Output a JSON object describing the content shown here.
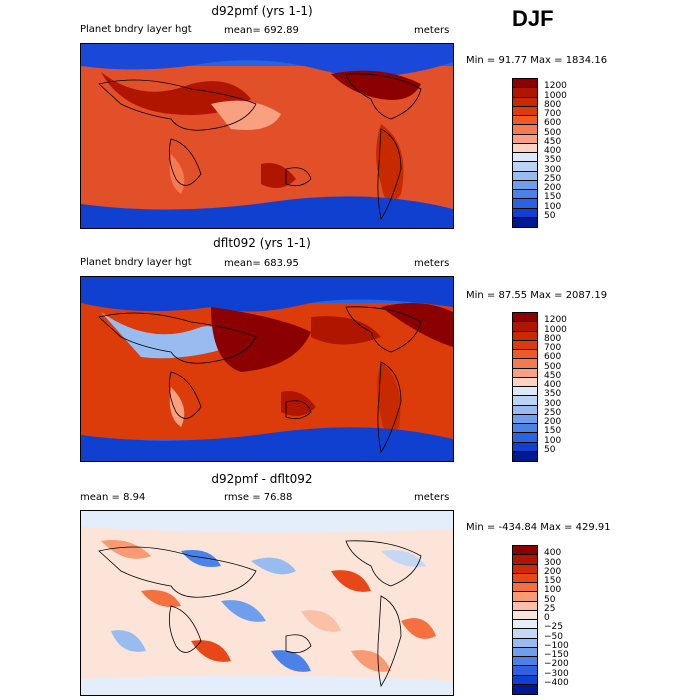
{
  "season": "DJF",
  "panels": [
    {
      "title": "d92pmf (yrs 1-1)",
      "left_label": "Planet bndry layer hgt",
      "mid_label": "mean= 692.89",
      "right_label": "meters",
      "minmax": "Min =  91.77 Max = 1834.16",
      "colorbar": {
        "labels": [
          "1200",
          "1000",
          "800",
          "700",
          "600",
          "500",
          "450",
          "400",
          "350",
          "300",
          "250",
          "200",
          "150",
          "100",
          "50"
        ],
        "colors": [
          "#8b0000",
          "#b01500",
          "#c82a00",
          "#dc3b0a",
          "#ec5a2a",
          "#f47a52",
          "#f8a080",
          "#fbd3c0",
          "#dde8f8",
          "#bcd4f4",
          "#98bcf0",
          "#6f9eec",
          "#4a82e8",
          "#2a62e0",
          "#1040d0",
          "#001890"
        ]
      }
    },
    {
      "title": "dflt092 (yrs 1-1)",
      "left_label": "Planet bndry layer hgt",
      "mid_label": "mean= 683.95",
      "right_label": "meters",
      "minmax": "Min =  87.55 Max = 2087.19",
      "colorbar": {
        "labels": [
          "1200",
          "1000",
          "800",
          "700",
          "600",
          "500",
          "450",
          "400",
          "350",
          "300",
          "250",
          "200",
          "150",
          "100",
          "50"
        ],
        "colors": [
          "#8b0000",
          "#b01500",
          "#c82a00",
          "#dc3b0a",
          "#ec5a2a",
          "#f47a52",
          "#f8a080",
          "#fbd3c0",
          "#dde8f8",
          "#bcd4f4",
          "#98bcf0",
          "#6f9eec",
          "#4a82e8",
          "#2a62e0",
          "#1040d0",
          "#001890"
        ]
      }
    },
    {
      "title": "d92pmf - dflt092",
      "left_label": "mean =    8.94",
      "mid_label": "rmse =   76.88",
      "right_label": "meters",
      "minmax": "Min = -434.84 Max = 429.91",
      "colorbar": {
        "labels": [
          "400",
          "300",
          "200",
          "150",
          "100",
          "50",
          "25",
          "0",
          "−25",
          "−50",
          "−100",
          "−150",
          "−200",
          "−300",
          "−400"
        ],
        "colors": [
          "#8b0000",
          "#b01500",
          "#d02a00",
          "#e84818",
          "#f4703e",
          "#f89a74",
          "#fbc0a6",
          "#fde4d8",
          "#e4eefa",
          "#c4d8f6",
          "#98bcf0",
          "#6f9eec",
          "#4a82e8",
          "#2a62e0",
          "#1040d0",
          "#001890"
        ]
      }
    }
  ]
}
